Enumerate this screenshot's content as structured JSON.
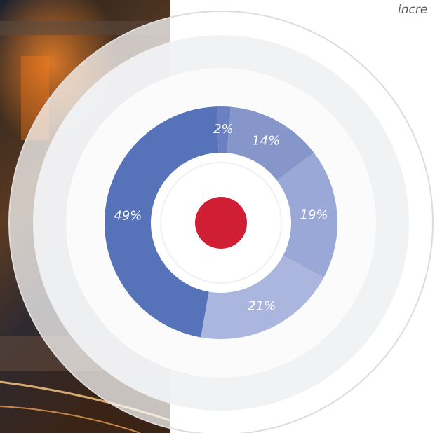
{
  "caption": "incre",
  "chart_data": {
    "type": "donut",
    "values": [
      2,
      14,
      19,
      21,
      49
    ],
    "value_labels": [
      "2%",
      "14%",
      "19%",
      "21%",
      "49%"
    ],
    "colors": [
      "#6a80c1",
      "#8696cb",
      "#9aa8d7",
      "#abb6de",
      "#5672b8"
    ]
  }
}
